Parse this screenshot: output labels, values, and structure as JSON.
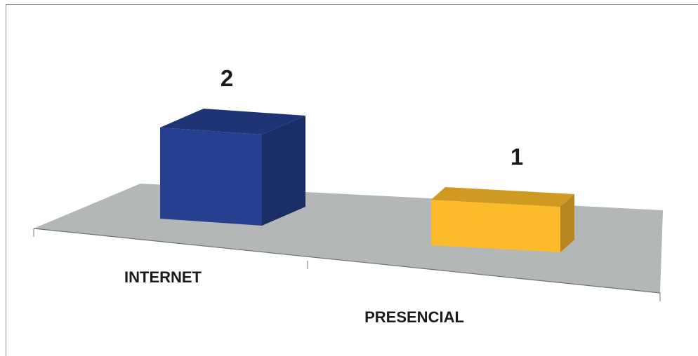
{
  "chart_data": {
    "type": "bar",
    "style": "3d",
    "categories": [
      "INTERNET",
      "PRESENCIAL"
    ],
    "values": [
      2,
      1
    ],
    "colors": [
      "#263F8E",
      "#FCBB2A"
    ],
    "floor_color": "#B3B7B8",
    "title": "",
    "xlabel": "",
    "ylabel": "",
    "ylim": [
      0,
      2
    ],
    "grid": false,
    "legend": "none"
  }
}
